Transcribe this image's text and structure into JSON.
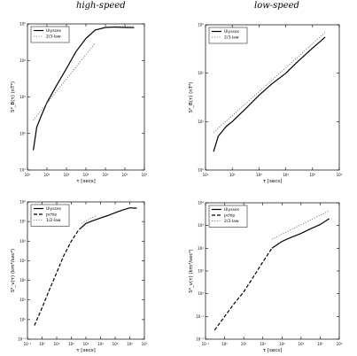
{
  "column_titles": {
    "left": "high-speed",
    "right": "low-speed"
  },
  "colors": {
    "ulysses": "#000000",
    "law": "#666666",
    "axes": "#000000"
  },
  "chart_data": [
    {
      "type": "line",
      "panel": "top-left",
      "xlabel": "τ [secs]",
      "ylabel": "S²_B(τ) (nT²)",
      "xscale": "log",
      "yscale": "log",
      "xlim": [
        10,
        10000000
      ],
      "ylim": [
        10,
        100000
      ],
      "x_ticks": [
        10,
        100,
        1000,
        10000,
        100000,
        1000000,
        10000000
      ],
      "y_ticks": [
        10,
        100,
        1000,
        10000,
        100000
      ],
      "x_tick_labels": [
        "10¹",
        "10²",
        "10³",
        "10⁴",
        "10⁵",
        "10⁶",
        "10⁷"
      ],
      "y_tick_labels": [
        "10¹",
        "10²",
        "10³",
        "10⁴",
        "10⁵"
      ],
      "legend_position": "top-left",
      "series": [
        {
          "name": "Ulysses",
          "style": "solid",
          "x": [
            20,
            30,
            50,
            100,
            300,
            1000,
            3000,
            10000,
            30000,
            100000,
            300000,
            1000000,
            3000000
          ],
          "y": [
            35,
            150,
            300,
            700,
            2000,
            6000,
            17000,
            40000,
            68000,
            80000,
            82000,
            80000,
            79000
          ]
        },
        {
          "name": "2/3-law",
          "style": "dotted",
          "x": [
            20,
            30000
          ],
          "y": [
            230,
            30000
          ]
        },
        {
          "name": "",
          "style": "dotted",
          "x": [
            300000,
            3000000
          ],
          "y": [
            85000,
            85000
          ]
        }
      ]
    },
    {
      "type": "line",
      "panel": "top-right",
      "xlabel": "τ [secs]",
      "ylabel": "S²_B(τ) (nT²)",
      "xscale": "log",
      "yscale": "log",
      "xlim": [
        10,
        1000000
      ],
      "ylim": [
        1,
        1000
      ],
      "x_ticks": [
        10,
        100,
        1000,
        10000,
        100000,
        1000000
      ],
      "y_ticks": [
        1,
        10,
        100,
        1000
      ],
      "x_tick_labels": [
        "10¹",
        "10²",
        "10³",
        "10⁴",
        "10⁵",
        "10⁶"
      ],
      "y_tick_labels": [
        "10⁰",
        "10¹",
        "10²",
        "10³"
      ],
      "legend_position": "top-left",
      "series": [
        {
          "name": "Ulysses",
          "style": "solid",
          "x": [
            20,
            30,
            60,
            100,
            300,
            1000,
            3000,
            10000,
            30000,
            100000,
            300000
          ],
          "y": [
            2.4,
            5,
            8,
            10,
            18,
            35,
            60,
            100,
            180,
            330,
            560
          ]
        },
        {
          "name": "2/3-law",
          "style": "dotted",
          "x": [
            20,
            300000
          ],
          "y": [
            6,
            700
          ]
        }
      ]
    },
    {
      "type": "line",
      "panel": "bottom-left",
      "xlabel": "τ [secs]",
      "ylabel": "S²_v(τ) (km²/sec²)",
      "xscale": "log",
      "yscale": "log",
      "xlim": [
        0.1,
        10000000
      ],
      "ylim": [
        0.1,
        1000000
      ],
      "x_ticks": [
        0.1,
        1,
        10,
        100,
        1000,
        10000,
        100000,
        1000000,
        10000000
      ],
      "y_ticks": [
        0.1,
        1,
        10,
        100,
        1000,
        10000,
        100000,
        1000000
      ],
      "x_tick_labels": [
        "10⁻¹",
        "10⁰",
        "10¹",
        "10²",
        "10³",
        "10⁴",
        "10⁵",
        "10⁶",
        "10⁷"
      ],
      "y_tick_labels": [
        "10⁻¹",
        "10⁰",
        "10¹",
        "10²",
        "10³",
        "10⁴",
        "10⁵",
        "10⁶"
      ],
      "legend_position": "top-left",
      "series": [
        {
          "name": "Ulysses",
          "style": "solid",
          "x": [
            500,
            1000,
            3000,
            10000,
            30000,
            100000,
            300000,
            1000000,
            3000000
          ],
          "y": [
            50000,
            80000,
            110000,
            150000,
            200000,
            280000,
            380000,
            500000,
            480000
          ]
        },
        {
          "name": "pchip",
          "style": "dashed",
          "x": [
            0.3,
            1,
            3,
            10,
            30,
            100,
            300,
            500
          ],
          "y": [
            0.5,
            4,
            30,
            250,
            1800,
            10000,
            35000,
            50000
          ]
        },
        {
          "name": "1/2-law",
          "style": "dotted",
          "x": [
            500,
            5000
          ],
          "y": [
            80000,
            200000
          ]
        }
      ]
    },
    {
      "type": "line",
      "panel": "bottom-right",
      "xlabel": "τ [secs]",
      "ylabel": "S²_v(τ) (km²/sec²)",
      "xscale": "log",
      "yscale": "log",
      "xlim": [
        0.1,
        1000000
      ],
      "ylim": [
        0.01,
        10000
      ],
      "x_ticks": [
        0.1,
        1,
        10,
        100,
        1000,
        10000,
        100000,
        1000000
      ],
      "y_ticks": [
        0.01,
        0.1,
        1,
        10,
        100,
        1000,
        10000
      ],
      "x_tick_labels": [
        "10⁻¹",
        "10⁰",
        "10¹",
        "10²",
        "10³",
        "10⁴",
        "10⁵",
        "10⁶"
      ],
      "y_tick_labels": [
        "10⁻²",
        "10⁻¹",
        "10⁰",
        "10¹",
        "10²",
        "10³",
        "10⁴"
      ],
      "legend_position": "top-left",
      "series": [
        {
          "name": "Ulysses",
          "style": "solid",
          "x": [
            300,
            1000,
            3000,
            10000,
            30000,
            100000,
            300000
          ],
          "y": [
            100,
            200,
            300,
            450,
            700,
            1100,
            2000
          ]
        },
        {
          "name": "pchip",
          "style": "dashed",
          "x": [
            0.3,
            1,
            3,
            10,
            30,
            100,
            300
          ],
          "y": [
            0.025,
            0.1,
            0.35,
            1.2,
            5,
            25,
            100
          ]
        },
        {
          "name": "2/3-law",
          "style": "dotted",
          "x": [
            300,
            300000
          ],
          "y": [
            250,
            4500
          ]
        }
      ]
    }
  ]
}
